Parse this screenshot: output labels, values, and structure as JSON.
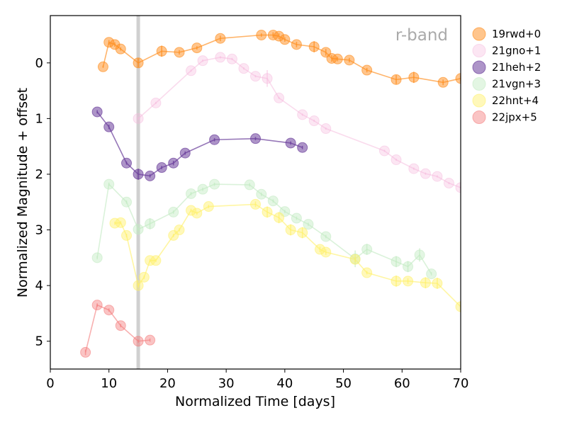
{
  "chart_data": {
    "type": "scatter",
    "annotation": "r-band",
    "xlabel": "Normalized Time [days]",
    "ylabel": "Normalized Magnitude + offset",
    "xlim": [
      0,
      70
    ],
    "ylim": [
      5.5,
      -0.85
    ],
    "y_inverted": true,
    "xticks": [
      0,
      10,
      20,
      30,
      40,
      50,
      60,
      70
    ],
    "yticks": [
      0,
      1,
      2,
      3,
      4,
      5
    ],
    "vline_x": 15,
    "legend_position": "outside-right",
    "series": [
      {
        "name": "19rwd+0",
        "color": "#ff8c1a",
        "alpha": 0.5,
        "x": [
          9,
          10,
          11,
          12,
          15,
          19,
          22,
          25,
          29,
          36,
          38,
          39,
          40,
          42,
          45,
          47,
          48,
          49,
          51,
          54,
          59,
          62,
          67,
          70
        ],
        "y": [
          0.07,
          -0.37,
          -0.33,
          -0.25,
          0.0,
          -0.21,
          -0.19,
          -0.27,
          -0.44,
          -0.5,
          -0.5,
          -0.48,
          -0.42,
          -0.33,
          -0.29,
          -0.19,
          -0.08,
          -0.07,
          -0.05,
          0.13,
          0.3,
          0.26,
          0.35,
          0.28
        ],
        "err": [
          0.02,
          0.04,
          0.04,
          0.03,
          0.08,
          0.1,
          0.04,
          0.03,
          0.05,
          0.03,
          0.05,
          0.05,
          0.04,
          0.05,
          0.1,
          0.06,
          0.06,
          0.04,
          0.04,
          0.04,
          0.08,
          0.1,
          0.05,
          0.05
        ]
      },
      {
        "name": "21gno+1",
        "color": "#f5b8dc",
        "alpha": 0.35,
        "x": [
          15,
          18,
          24,
          26,
          29,
          31,
          33,
          35,
          37,
          39,
          43,
          45,
          47,
          57,
          59,
          62,
          64,
          66,
          68,
          70
        ],
        "y": [
          1.0,
          0.72,
          0.14,
          -0.04,
          -0.1,
          -0.07,
          0.1,
          0.24,
          0.28,
          0.63,
          0.93,
          1.04,
          1.18,
          1.58,
          1.74,
          1.9,
          1.99,
          2.04,
          2.16,
          2.24
        ],
        "err": [
          0.02,
          0.02,
          0.02,
          0.02,
          0.02,
          0.02,
          0.02,
          0.02,
          0.15,
          0.02,
          0.02,
          0.02,
          0.02,
          0.02,
          0.02,
          0.02,
          0.02,
          0.02,
          0.02,
          0.02
        ]
      },
      {
        "name": "21heh+2",
        "color": "#6a3d9a",
        "alpha": 0.55,
        "x": [
          8,
          10,
          13,
          15,
          17,
          19,
          21,
          23,
          28,
          35,
          41,
          43
        ],
        "y": [
          0.88,
          1.15,
          1.8,
          2.0,
          2.03,
          1.88,
          1.8,
          1.62,
          1.38,
          1.36,
          1.44,
          1.52
        ],
        "err": [
          0.03,
          0.04,
          0.03,
          0.1,
          0.03,
          0.03,
          0.04,
          0.03,
          0.03,
          0.03,
          0.03,
          0.03
        ]
      },
      {
        "name": "21vgn+3",
        "color": "#c2eac2",
        "alpha": 0.45,
        "x": [
          8,
          10,
          13,
          15,
          17,
          21,
          24,
          26,
          28,
          34,
          36,
          38,
          40,
          42,
          44,
          47,
          52,
          54,
          59,
          61,
          63,
          65
        ],
        "y": [
          3.5,
          2.18,
          2.5,
          2.99,
          2.89,
          2.68,
          2.35,
          2.27,
          2.18,
          2.19,
          2.36,
          2.48,
          2.67,
          2.79,
          2.9,
          3.12,
          3.52,
          3.35,
          3.57,
          3.66,
          3.45,
          3.79
        ],
        "err": [
          0.03,
          0.03,
          0.03,
          0.03,
          0.1,
          0.03,
          0.03,
          0.03,
          0.03,
          0.03,
          0.03,
          0.03,
          0.03,
          0.03,
          0.03,
          0.03,
          0.15,
          0.1,
          0.1,
          0.1,
          0.12,
          0.03
        ]
      },
      {
        "name": "22hnt+4",
        "color": "#fff066",
        "alpha": 0.45,
        "x": [
          11,
          12,
          13,
          15,
          16,
          17,
          18,
          21,
          22,
          24,
          25,
          27,
          35,
          37,
          39,
          41,
          43,
          46,
          47,
          52,
          54,
          59,
          61,
          64,
          66,
          70
        ],
        "y": [
          2.88,
          2.87,
          3.1,
          4.0,
          3.85,
          3.55,
          3.55,
          3.1,
          3.0,
          2.65,
          2.7,
          2.58,
          2.54,
          2.68,
          2.78,
          3.0,
          3.05,
          3.35,
          3.4,
          3.53,
          3.77,
          3.92,
          3.92,
          3.95,
          3.96,
          4.38
        ],
        "err": [
          0.03,
          0.03,
          0.03,
          0.04,
          0.03,
          0.03,
          0.03,
          0.03,
          0.03,
          0.03,
          0.03,
          0.03,
          0.05,
          0.1,
          0.1,
          0.1,
          0.1,
          0.05,
          0.05,
          0.05,
          0.03,
          0.1,
          0.05,
          0.1,
          0.1,
          0.1
        ]
      },
      {
        "name": "22jpx+5",
        "color": "#f47c7c",
        "alpha": 0.45,
        "x": [
          6,
          8,
          10,
          12,
          15,
          17
        ],
        "y": [
          5.2,
          4.35,
          4.44,
          4.72,
          5.0,
          4.98
        ],
        "err": [
          0.05,
          0.03,
          0.03,
          0.03,
          0.03,
          0.03
        ]
      }
    ]
  }
}
